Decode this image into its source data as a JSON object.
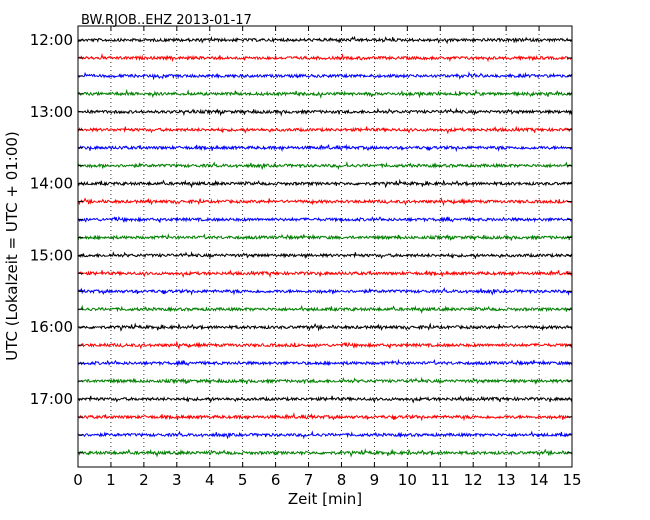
{
  "chart_data": {
    "type": "line",
    "title": "BW.RJOB..EHZ 2013-01-17",
    "xlabel": "Zeit  [min]",
    "ylabel": "UTC (Lokalzeit = UTC + 01:00)",
    "x_range": [
      0,
      15
    ],
    "x_ticks": [
      0,
      1,
      2,
      3,
      4,
      5,
      6,
      7,
      8,
      9,
      10,
      11,
      12,
      13,
      14,
      15
    ],
    "grid": "vertical dotted",
    "trace_interval_min": 15,
    "y_ticks": [
      "12:00",
      "13:00",
      "14:00",
      "15:00",
      "16:00",
      "17:00"
    ],
    "trace_colors": [
      "#000000",
      "#ff0000",
      "#0000ff",
      "#008000"
    ],
    "traces": [
      {
        "start": "12:00",
        "color": "#000000"
      },
      {
        "start": "12:15",
        "color": "#ff0000"
      },
      {
        "start": "12:30",
        "color": "#0000ff"
      },
      {
        "start": "12:45",
        "color": "#008000"
      },
      {
        "start": "13:00",
        "color": "#000000"
      },
      {
        "start": "13:15",
        "color": "#ff0000"
      },
      {
        "start": "13:30",
        "color": "#0000ff"
      },
      {
        "start": "13:45",
        "color": "#008000"
      },
      {
        "start": "14:00",
        "color": "#000000"
      },
      {
        "start": "14:15",
        "color": "#ff0000"
      },
      {
        "start": "14:30",
        "color": "#0000ff"
      },
      {
        "start": "14:45",
        "color": "#008000"
      },
      {
        "start": "15:00",
        "color": "#000000"
      },
      {
        "start": "15:15",
        "color": "#ff0000"
      },
      {
        "start": "15:30",
        "color": "#0000ff"
      },
      {
        "start": "15:45",
        "color": "#008000"
      },
      {
        "start": "16:00",
        "color": "#000000"
      },
      {
        "start": "16:15",
        "color": "#ff0000"
      },
      {
        "start": "16:30",
        "color": "#0000ff"
      },
      {
        "start": "16:45",
        "color": "#008000"
      },
      {
        "start": "17:00",
        "color": "#000000"
      },
      {
        "start": "17:15",
        "color": "#ff0000"
      },
      {
        "start": "17:30",
        "color": "#0000ff"
      },
      {
        "start": "17:45",
        "color": "#008000"
      }
    ]
  }
}
